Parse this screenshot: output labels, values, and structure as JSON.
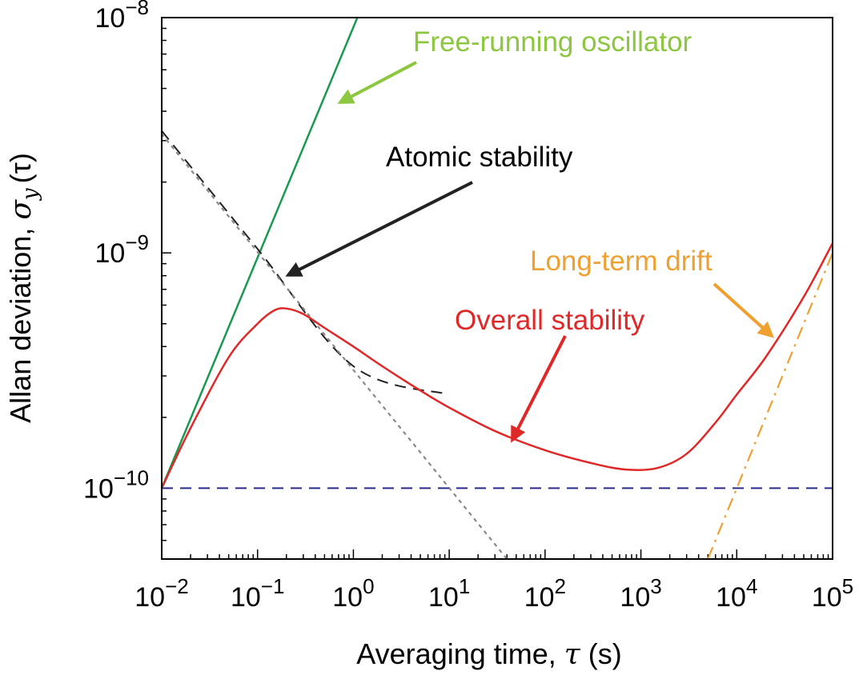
{
  "chart_data": {
    "type": "line",
    "xscale": "log",
    "yscale": "log",
    "xlim": [
      0.01,
      100000
    ],
    "ylim": [
      5e-11,
      1e-08
    ],
    "grid": false,
    "xlabel": {
      "text": "Averaging time, ",
      "symbol": "τ",
      "unit": " (s)"
    },
    "ylabel": {
      "text": "Allan deviation, ",
      "symbol": "σ",
      "subscript": "y",
      "arg": "(τ)"
    },
    "x_ticks": [
      {
        "value": 0.01,
        "base": "10",
        "exp": "−2"
      },
      {
        "value": 0.1,
        "base": "10",
        "exp": "−1"
      },
      {
        "value": 1,
        "base": "10",
        "exp": "0"
      },
      {
        "value": 10,
        "base": "10",
        "exp": "1"
      },
      {
        "value": 100,
        "base": "10",
        "exp": "2"
      },
      {
        "value": 1000,
        "base": "10",
        "exp": "3"
      },
      {
        "value": 10000,
        "base": "10",
        "exp": "4"
      },
      {
        "value": 100000,
        "base": "10",
        "exp": "5"
      }
    ],
    "y_ticks": [
      {
        "value": 1e-10,
        "base": "10",
        "exp": "−10"
      },
      {
        "value": 1e-09,
        "base": "10",
        "exp": "−9"
      },
      {
        "value": 1e-08,
        "base": "10",
        "exp": "−8"
      }
    ],
    "series": [
      {
        "id": "free-running",
        "style": "solid",
        "color": "#1a9a50",
        "points": [
          [
            0.01,
            1e-10
          ],
          [
            1.1,
            1e-08
          ]
        ]
      },
      {
        "id": "atomic",
        "style": "dashed",
        "color": "#222222",
        "points": [
          [
            0.01,
            3.3e-09
          ],
          [
            0.1,
            1.04e-09
          ],
          [
            1,
            3.3e-10
          ],
          [
            10,
            2.5e-10
          ]
        ]
      },
      {
        "id": "white-noise",
        "style": "dotted",
        "color": "#888888",
        "points": [
          [
            0.01,
            3.2e-09
          ],
          [
            40,
            5e-11
          ]
        ]
      },
      {
        "id": "flicker-floor",
        "style": "dashed",
        "color": "#2a2a8a",
        "points": [
          [
            0.01,
            1e-10
          ],
          [
            100000,
            1e-10
          ]
        ]
      },
      {
        "id": "drift",
        "style": "dashdot",
        "color": "#f0a030",
        "points": [
          [
            5000,
            5e-11
          ],
          [
            100000,
            1e-09
          ]
        ]
      },
      {
        "id": "overall",
        "style": "solid",
        "color": "#e02828",
        "points": [
          [
            0.01,
            1e-10
          ],
          [
            0.02,
            1.8e-10
          ],
          [
            0.05,
            3.6e-10
          ],
          [
            0.1,
            5e-10
          ],
          [
            0.15,
            5.7e-10
          ],
          [
            0.2,
            5.8e-10
          ],
          [
            0.3,
            5.5e-10
          ],
          [
            0.5,
            4.8e-10
          ],
          [
            1,
            4e-10
          ],
          [
            2,
            3.3e-10
          ],
          [
            5,
            2.6e-10
          ],
          [
            10,
            2.2e-10
          ],
          [
            30,
            1.75e-10
          ],
          [
            100,
            1.45e-10
          ],
          [
            300,
            1.28e-10
          ],
          [
            700,
            1.2e-10
          ],
          [
            1500,
            1.22e-10
          ],
          [
            3000,
            1.4e-10
          ],
          [
            6000,
            1.9e-10
          ],
          [
            10000,
            2.5e-10
          ],
          [
            20000,
            3.6e-10
          ],
          [
            50000,
            6.5e-10
          ],
          [
            100000,
            1.1e-09
          ]
        ]
      }
    ],
    "annotations": [
      {
        "id": "free-running",
        "text": "Free-running oscillator",
        "color": "#8dc63f"
      },
      {
        "id": "atomic",
        "text": "Atomic stability",
        "color": "#000000"
      },
      {
        "id": "drift",
        "text": "Long-term drift",
        "color": "#f0a030"
      },
      {
        "id": "overall",
        "text": "Overall stability",
        "color": "#e02828"
      }
    ]
  }
}
